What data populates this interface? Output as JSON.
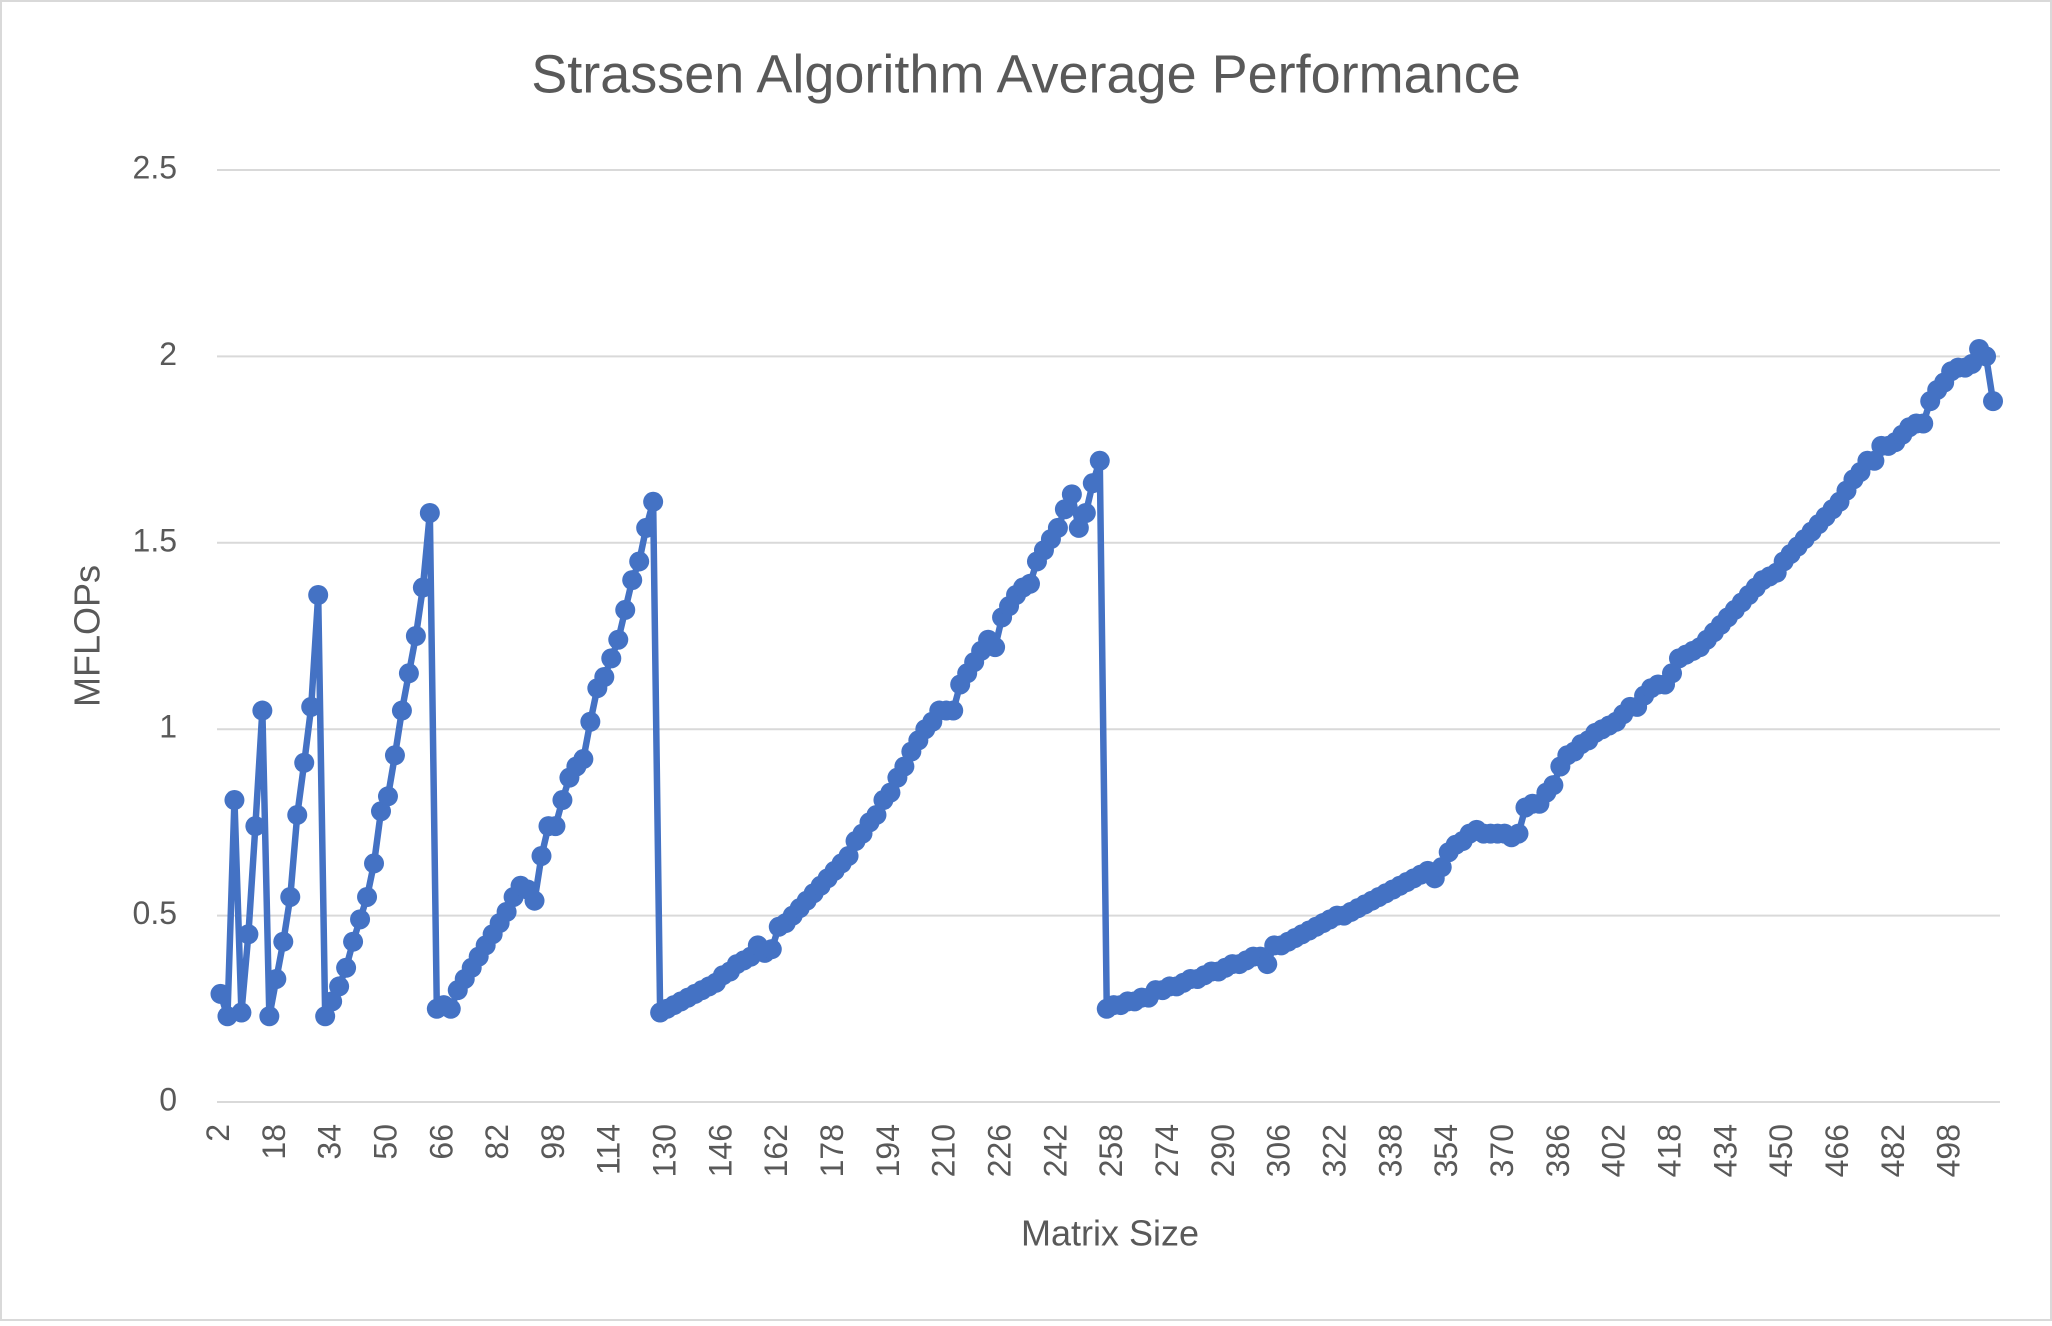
{
  "chart_data": {
    "type": "line",
    "title": "Strassen Algorithm Average Performance",
    "x_label": "Matrix Size",
    "y_label": "MFLOPs",
    "color": "#4472c4",
    "grid": true,
    "markers": true,
    "xlim": [
      1,
      512
    ],
    "ylim": [
      0,
      2.5
    ],
    "yticks": [
      0,
      0.5,
      1,
      1.5,
      2,
      2.5
    ],
    "xticks": [
      2,
      18,
      34,
      50,
      66,
      82,
      98,
      114,
      130,
      146,
      162,
      178,
      194,
      210,
      226,
      242,
      258,
      274,
      290,
      306,
      322,
      338,
      354,
      370,
      386,
      402,
      418,
      434,
      450,
      466,
      482,
      498
    ],
    "x": [
      2,
      4,
      6,
      8,
      10,
      12,
      14,
      16,
      18,
      20,
      22,
      24,
      26,
      28,
      30,
      32,
      34,
      36,
      38,
      40,
      42,
      44,
      46,
      48,
      50,
      52,
      54,
      56,
      58,
      60,
      62,
      64,
      66,
      68,
      70,
      72,
      74,
      76,
      78,
      80,
      82,
      84,
      86,
      88,
      90,
      92,
      94,
      96,
      98,
      100,
      102,
      104,
      106,
      108,
      110,
      112,
      114,
      116,
      118,
      120,
      122,
      124,
      126,
      128,
      130,
      132,
      134,
      136,
      138,
      140,
      142,
      144,
      146,
      148,
      150,
      152,
      154,
      156,
      158,
      160,
      162,
      164,
      166,
      168,
      170,
      172,
      174,
      176,
      178,
      180,
      182,
      184,
      186,
      188,
      190,
      192,
      194,
      196,
      198,
      200,
      202,
      204,
      206,
      208,
      210,
      212,
      214,
      216,
      218,
      220,
      222,
      224,
      226,
      228,
      230,
      232,
      234,
      236,
      238,
      240,
      242,
      244,
      246,
      248,
      250,
      252,
      254,
      256,
      258,
      260,
      262,
      264,
      266,
      268,
      270,
      272,
      274,
      276,
      278,
      280,
      282,
      284,
      286,
      288,
      290,
      292,
      294,
      296,
      298,
      300,
      302,
      304,
      306,
      308,
      310,
      312,
      314,
      316,
      318,
      320,
      322,
      324,
      326,
      328,
      330,
      332,
      334,
      336,
      338,
      340,
      342,
      344,
      346,
      348,
      350,
      352,
      354,
      356,
      358,
      360,
      362,
      364,
      366,
      368,
      370,
      372,
      374,
      376,
      378,
      380,
      382,
      384,
      386,
      388,
      390,
      392,
      394,
      396,
      398,
      400,
      402,
      404,
      406,
      408,
      410,
      412,
      414,
      416,
      418,
      420,
      422,
      424,
      426,
      428,
      430,
      432,
      434,
      436,
      438,
      440,
      442,
      444,
      446,
      448,
      450,
      452,
      454,
      456,
      458,
      460,
      462,
      464,
      466,
      468,
      470,
      472,
      474,
      476,
      478,
      480,
      482,
      484,
      486,
      488,
      490,
      492,
      494,
      496,
      498,
      500,
      502,
      504,
      506,
      508,
      510
    ],
    "values": [
      0.29,
      0.23,
      0.81,
      0.24,
      0.45,
      0.74,
      1.05,
      0.23,
      0.33,
      0.43,
      0.55,
      0.77,
      0.91,
      1.06,
      1.36,
      0.23,
      0.27,
      0.31,
      0.36,
      0.43,
      0.49,
      0.55,
      0.64,
      0.78,
      0.82,
      0.93,
      1.05,
      1.15,
      1.25,
      1.38,
      1.58,
      0.25,
      0.26,
      0.25,
      0.3,
      0.33,
      0.36,
      0.39,
      0.42,
      0.45,
      0.48,
      0.51,
      0.55,
      0.58,
      0.57,
      0.54,
      0.66,
      0.74,
      0.74,
      0.81,
      0.87,
      0.9,
      0.92,
      1.02,
      1.11,
      1.14,
      1.19,
      1.24,
      1.32,
      1.4,
      1.45,
      1.54,
      1.61,
      0.24,
      0.25,
      0.26,
      0.27,
      0.28,
      0.29,
      0.3,
      0.31,
      0.32,
      0.34,
      0.35,
      0.37,
      0.38,
      0.39,
      0.42,
      0.4,
      0.41,
      0.47,
      0.48,
      0.5,
      0.52,
      0.54,
      0.56,
      0.58,
      0.6,
      0.62,
      0.64,
      0.66,
      0.7,
      0.72,
      0.75,
      0.77,
      0.81,
      0.83,
      0.87,
      0.9,
      0.94,
      0.97,
      1.0,
      1.02,
      1.05,
      1.05,
      1.05,
      1.12,
      1.15,
      1.18,
      1.21,
      1.24,
      1.22,
      1.3,
      1.33,
      1.36,
      1.38,
      1.39,
      1.45,
      1.48,
      1.51,
      1.54,
      1.59,
      1.63,
      1.54,
      1.58,
      1.66,
      1.72,
      0.25,
      0.26,
      0.26,
      0.27,
      0.27,
      0.28,
      0.28,
      0.3,
      0.3,
      0.31,
      0.31,
      0.32,
      0.33,
      0.33,
      0.34,
      0.35,
      0.35,
      0.36,
      0.37,
      0.37,
      0.38,
      0.39,
      0.39,
      0.37,
      0.42,
      0.42,
      0.43,
      0.44,
      0.45,
      0.46,
      0.47,
      0.48,
      0.49,
      0.5,
      0.5,
      0.51,
      0.52,
      0.53,
      0.54,
      0.55,
      0.56,
      0.57,
      0.58,
      0.59,
      0.6,
      0.61,
      0.62,
      0.6,
      0.63,
      0.67,
      0.69,
      0.7,
      0.72,
      0.73,
      0.72,
      0.72,
      0.72,
      0.72,
      0.71,
      0.72,
      0.79,
      0.8,
      0.8,
      0.83,
      0.85,
      0.9,
      0.93,
      0.94,
      0.96,
      0.97,
      0.99,
      1.0,
      1.01,
      1.02,
      1.04,
      1.06,
      1.06,
      1.09,
      1.11,
      1.12,
      1.12,
      1.15,
      1.19,
      1.2,
      1.21,
      1.22,
      1.24,
      1.26,
      1.28,
      1.3,
      1.32,
      1.34,
      1.36,
      1.38,
      1.4,
      1.41,
      1.42,
      1.45,
      1.47,
      1.49,
      1.51,
      1.53,
      1.55,
      1.57,
      1.59,
      1.61,
      1.64,
      1.67,
      1.69,
      1.72,
      1.72,
      1.76,
      1.76,
      1.77,
      1.79,
      1.81,
      1.82,
      1.82,
      1.88,
      1.91,
      1.93,
      1.96,
      1.97,
      1.97,
      1.98,
      2.02,
      2.0,
      1.88
    ]
  }
}
